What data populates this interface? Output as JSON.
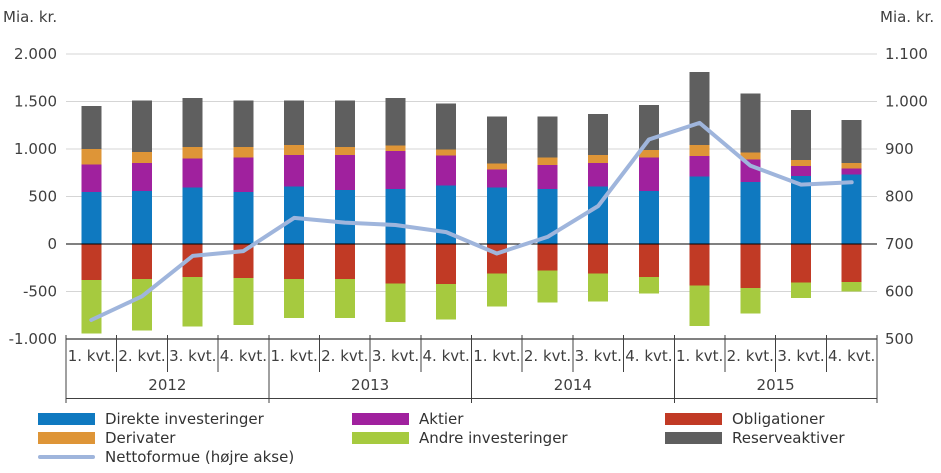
{
  "chart_data": {
    "type": "stacked-bar-with-line",
    "left_axis": {
      "unit": "Mia. kr.",
      "min": -1000,
      "max": 2000,
      "ticks": [
        2000,
        1500,
        1000,
        500,
        0,
        -500,
        -1000
      ],
      "tick_labels": [
        "2.000",
        "1.500",
        "1.000",
        "500",
        "0",
        "-500",
        "-1.000"
      ]
    },
    "right_axis": {
      "unit": "Mia. kr.",
      "min": 500,
      "max": 1100,
      "ticks": [
        1100,
        1000,
        900,
        800,
        700,
        600,
        500
      ],
      "tick_labels": [
        "1.100",
        "1.000",
        "900",
        "800",
        "700",
        "600",
        "500"
      ]
    },
    "groups": [
      {
        "year": "2012",
        "quarters": [
          "1. kvt.",
          "2. kvt.",
          "3. kvt.",
          "4. kvt."
        ]
      },
      {
        "year": "2013",
        "quarters": [
          "1. kvt.",
          "2. kvt.",
          "3. kvt.",
          "4. kvt."
        ]
      },
      {
        "year": "2014",
        "quarters": [
          "1. kvt.",
          "2. kvt.",
          "3. kvt.",
          "4. kvt."
        ]
      },
      {
        "year": "2015",
        "quarters": [
          "1. kvt.",
          "2. kvt.",
          "3. kvt.",
          "4. kvt."
        ]
      }
    ],
    "series": [
      {
        "name": "Direkte investeringer",
        "type": "bar",
        "color": "#0F79C0",
        "values": [
          545,
          560,
          595,
          550,
          605,
          570,
          580,
          615,
          595,
          580,
          605,
          560,
          710,
          655,
          715,
          730
        ]
      },
      {
        "name": "Aktier",
        "type": "bar",
        "color": "#A0219E",
        "values": [
          290,
          295,
          305,
          360,
          330,
          365,
          400,
          315,
          190,
          250,
          250,
          350,
          215,
          235,
          105,
          65
        ]
      },
      {
        "name": "Derivater",
        "type": "bar",
        "color": "#DE9537",
        "values": [
          165,
          115,
          120,
          110,
          105,
          85,
          55,
          65,
          60,
          80,
          80,
          80,
          115,
          75,
          65,
          60
        ]
      },
      {
        "name": "Reserveaktiver",
        "type": "bar",
        "color": "#5F5F5F",
        "values": [
          455,
          540,
          515,
          490,
          470,
          490,
          500,
          485,
          495,
          430,
          435,
          475,
          770,
          620,
          525,
          450
        ]
      },
      {
        "name": "Obligationer",
        "type": "bar",
        "color": "#C13A25",
        "values": [
          -380,
          -370,
          -345,
          -360,
          -370,
          -370,
          -415,
          -420,
          -310,
          -280,
          -310,
          -345,
          -435,
          -465,
          -405,
          -400
        ]
      },
      {
        "name": "Andre investeringer",
        "type": "bar",
        "color": "#A6CA3F",
        "values": [
          -560,
          -540,
          -525,
          -495,
          -410,
          -410,
          -405,
          -375,
          -350,
          -335,
          -295,
          -175,
          -430,
          -265,
          -165,
          -100
        ]
      },
      {
        "name": "Nettoformue (højre akse)",
        "type": "line",
        "axis": "right",
        "color": "#9FB5DC",
        "values": [
          540,
          590,
          675,
          685,
          755,
          745,
          740,
          725,
          680,
          715,
          780,
          920,
          955,
          865,
          825,
          830
        ]
      }
    ],
    "stack_order_positive": [
      "Direkte investeringer",
      "Aktier",
      "Derivater",
      "Reserveaktiver"
    ],
    "stack_order_negative": [
      "Obligationer",
      "Andre investeringer"
    ],
    "grid_color": "#D5D5D5",
    "zero_line_color": "#000000",
    "axis_text_color": "#3F3F3F"
  },
  "legend": {
    "items": [
      {
        "label": "Direkte investeringer",
        "color": "#0F79C0",
        "swatch": "bar"
      },
      {
        "label": "Derivater",
        "color": "#DE9537",
        "swatch": "bar"
      },
      {
        "label": "Nettoformue (højre akse)",
        "color": "#9FB5DC",
        "swatch": "line"
      },
      {
        "label": "Aktier",
        "color": "#A0219E",
        "swatch": "bar"
      },
      {
        "label": "Andre investeringer",
        "color": "#A6CA3F",
        "swatch": "bar"
      },
      {
        "label": "Obligationer",
        "color": "#C13A25",
        "swatch": "bar"
      },
      {
        "label": "Reserveaktiver",
        "color": "#5F5F5F",
        "swatch": "bar"
      }
    ]
  }
}
